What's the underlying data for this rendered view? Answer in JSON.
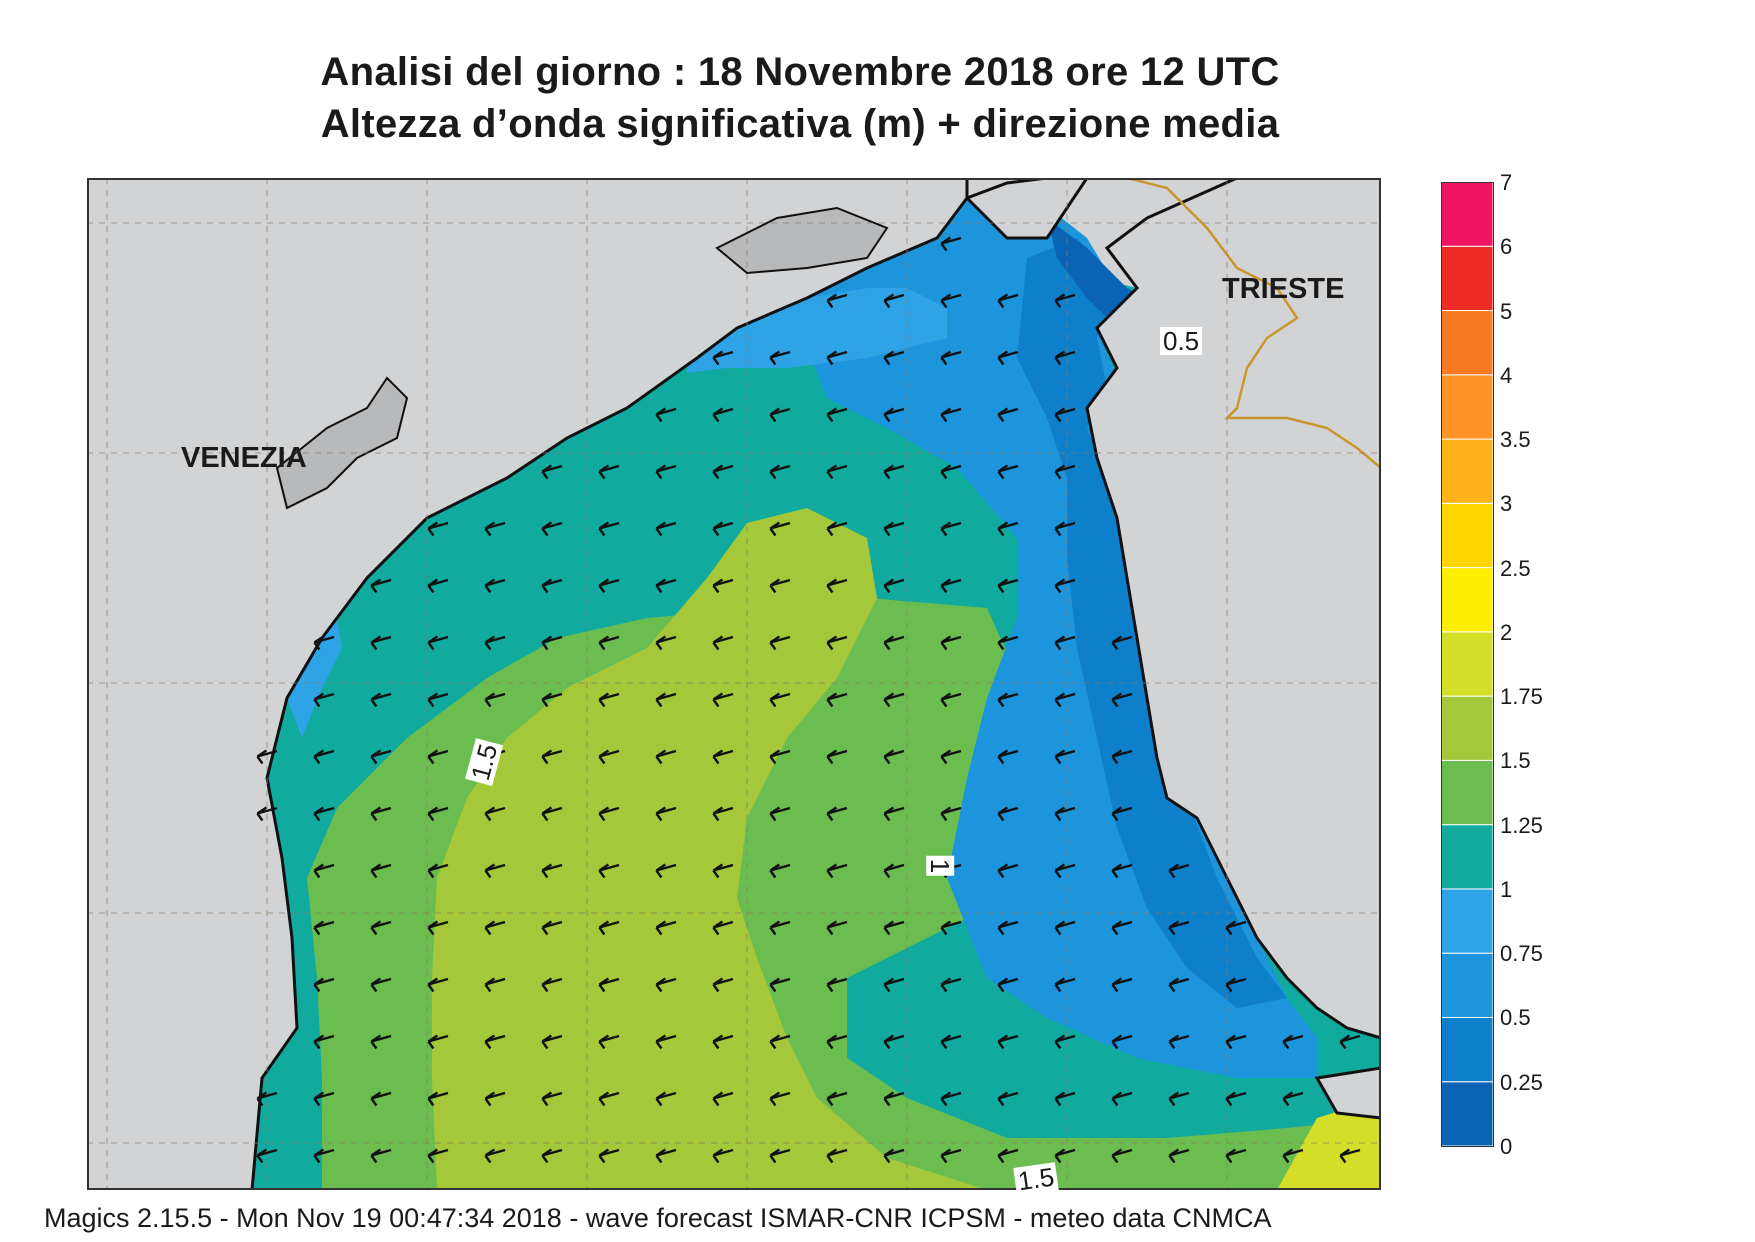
{
  "title": {
    "line1": "Analisi del giorno :  18 Novembre  2018   ore 12 UTC",
    "line2": "Altezza d’onda significativa (m) + direzione media"
  },
  "cities": {
    "venezia": "VENEZIA",
    "trieste": "TRIESTE"
  },
  "contour_labels": {
    "half": "0.5",
    "one": "1",
    "one_half_west": "1.5",
    "one_half_south": "1.5"
  },
  "colorbar": {
    "levels": [
      "0",
      "0.25",
      "0.5",
      "0.75",
      "1",
      "1.25",
      "1.5",
      "1.75",
      "2",
      "2.5",
      "3",
      "3.5",
      "4",
      "5",
      "6",
      "7"
    ],
    "colors": [
      "#0a63b4",
      "#0d7fcb",
      "#1c95dd",
      "#2ea3e6",
      "#10aa9f",
      "#6cbd4f",
      "#a4c83a",
      "#d4de28",
      "#ffee00",
      "#ffd500",
      "#ffb21a",
      "#ff9326",
      "#f57a21",
      "#ec2b25",
      "#ef1562"
    ]
  },
  "map": {
    "land_color": "#d2d3d5",
    "border_color": "#c9962e",
    "arrow_direction": "south-west"
  },
  "footer": "Magics 2.15.5 - Mon Nov 19 00:47:34 2018 - wave forecast  ISMAR-CNR  ICPSM - meteo data   CNMCA"
}
